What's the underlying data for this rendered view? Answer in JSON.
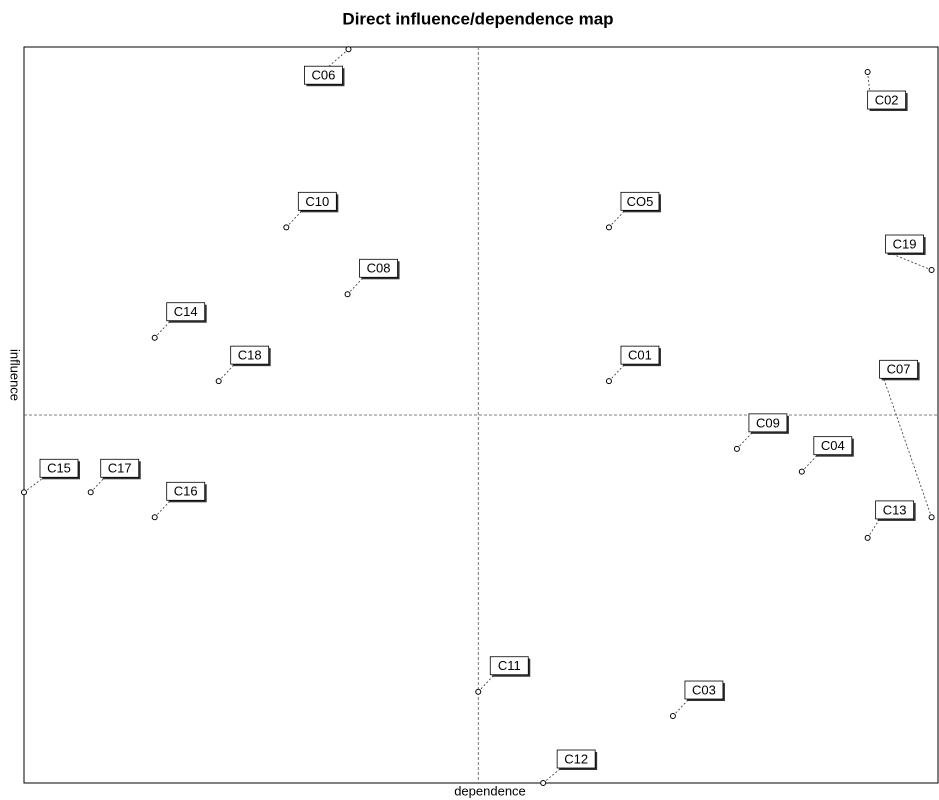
{
  "chart_data": {
    "type": "scatter",
    "title": "Direct influence/dependence map",
    "x_label": "dependence",
    "y_label": "influence",
    "labels": [
      "C06",
      "C02",
      "C10",
      "CO5",
      "C19",
      "C08",
      "C14",
      "C18",
      "C01",
      "C07",
      "C09",
      "C04",
      "C13",
      "C15",
      "C17",
      "C16",
      "C11",
      "C03",
      "C12"
    ],
    "x": [
      35.5,
      92.3,
      28.7,
      64.0,
      99.3,
      35.4,
      14.3,
      21.3,
      64.0,
      99.3,
      78.0,
      85.1,
      92.3,
      0,
      7.3,
      14.3,
      49.7,
      71.0,
      56.8
    ],
    "values": [
      99.7,
      96.6,
      75.5,
      75.5,
      69.7,
      66.4,
      60.5,
      54.6,
      54.6,
      36.1,
      45.4,
      42.3,
      33.3,
      39.5,
      39.5,
      36.1,
      12.4,
      9.1,
      0
    ],
    "xlim": [
      0,
      100
    ],
    "ylim": [
      0,
      100
    ],
    "reference_x": 49.7,
    "reference_y": 50
  }
}
